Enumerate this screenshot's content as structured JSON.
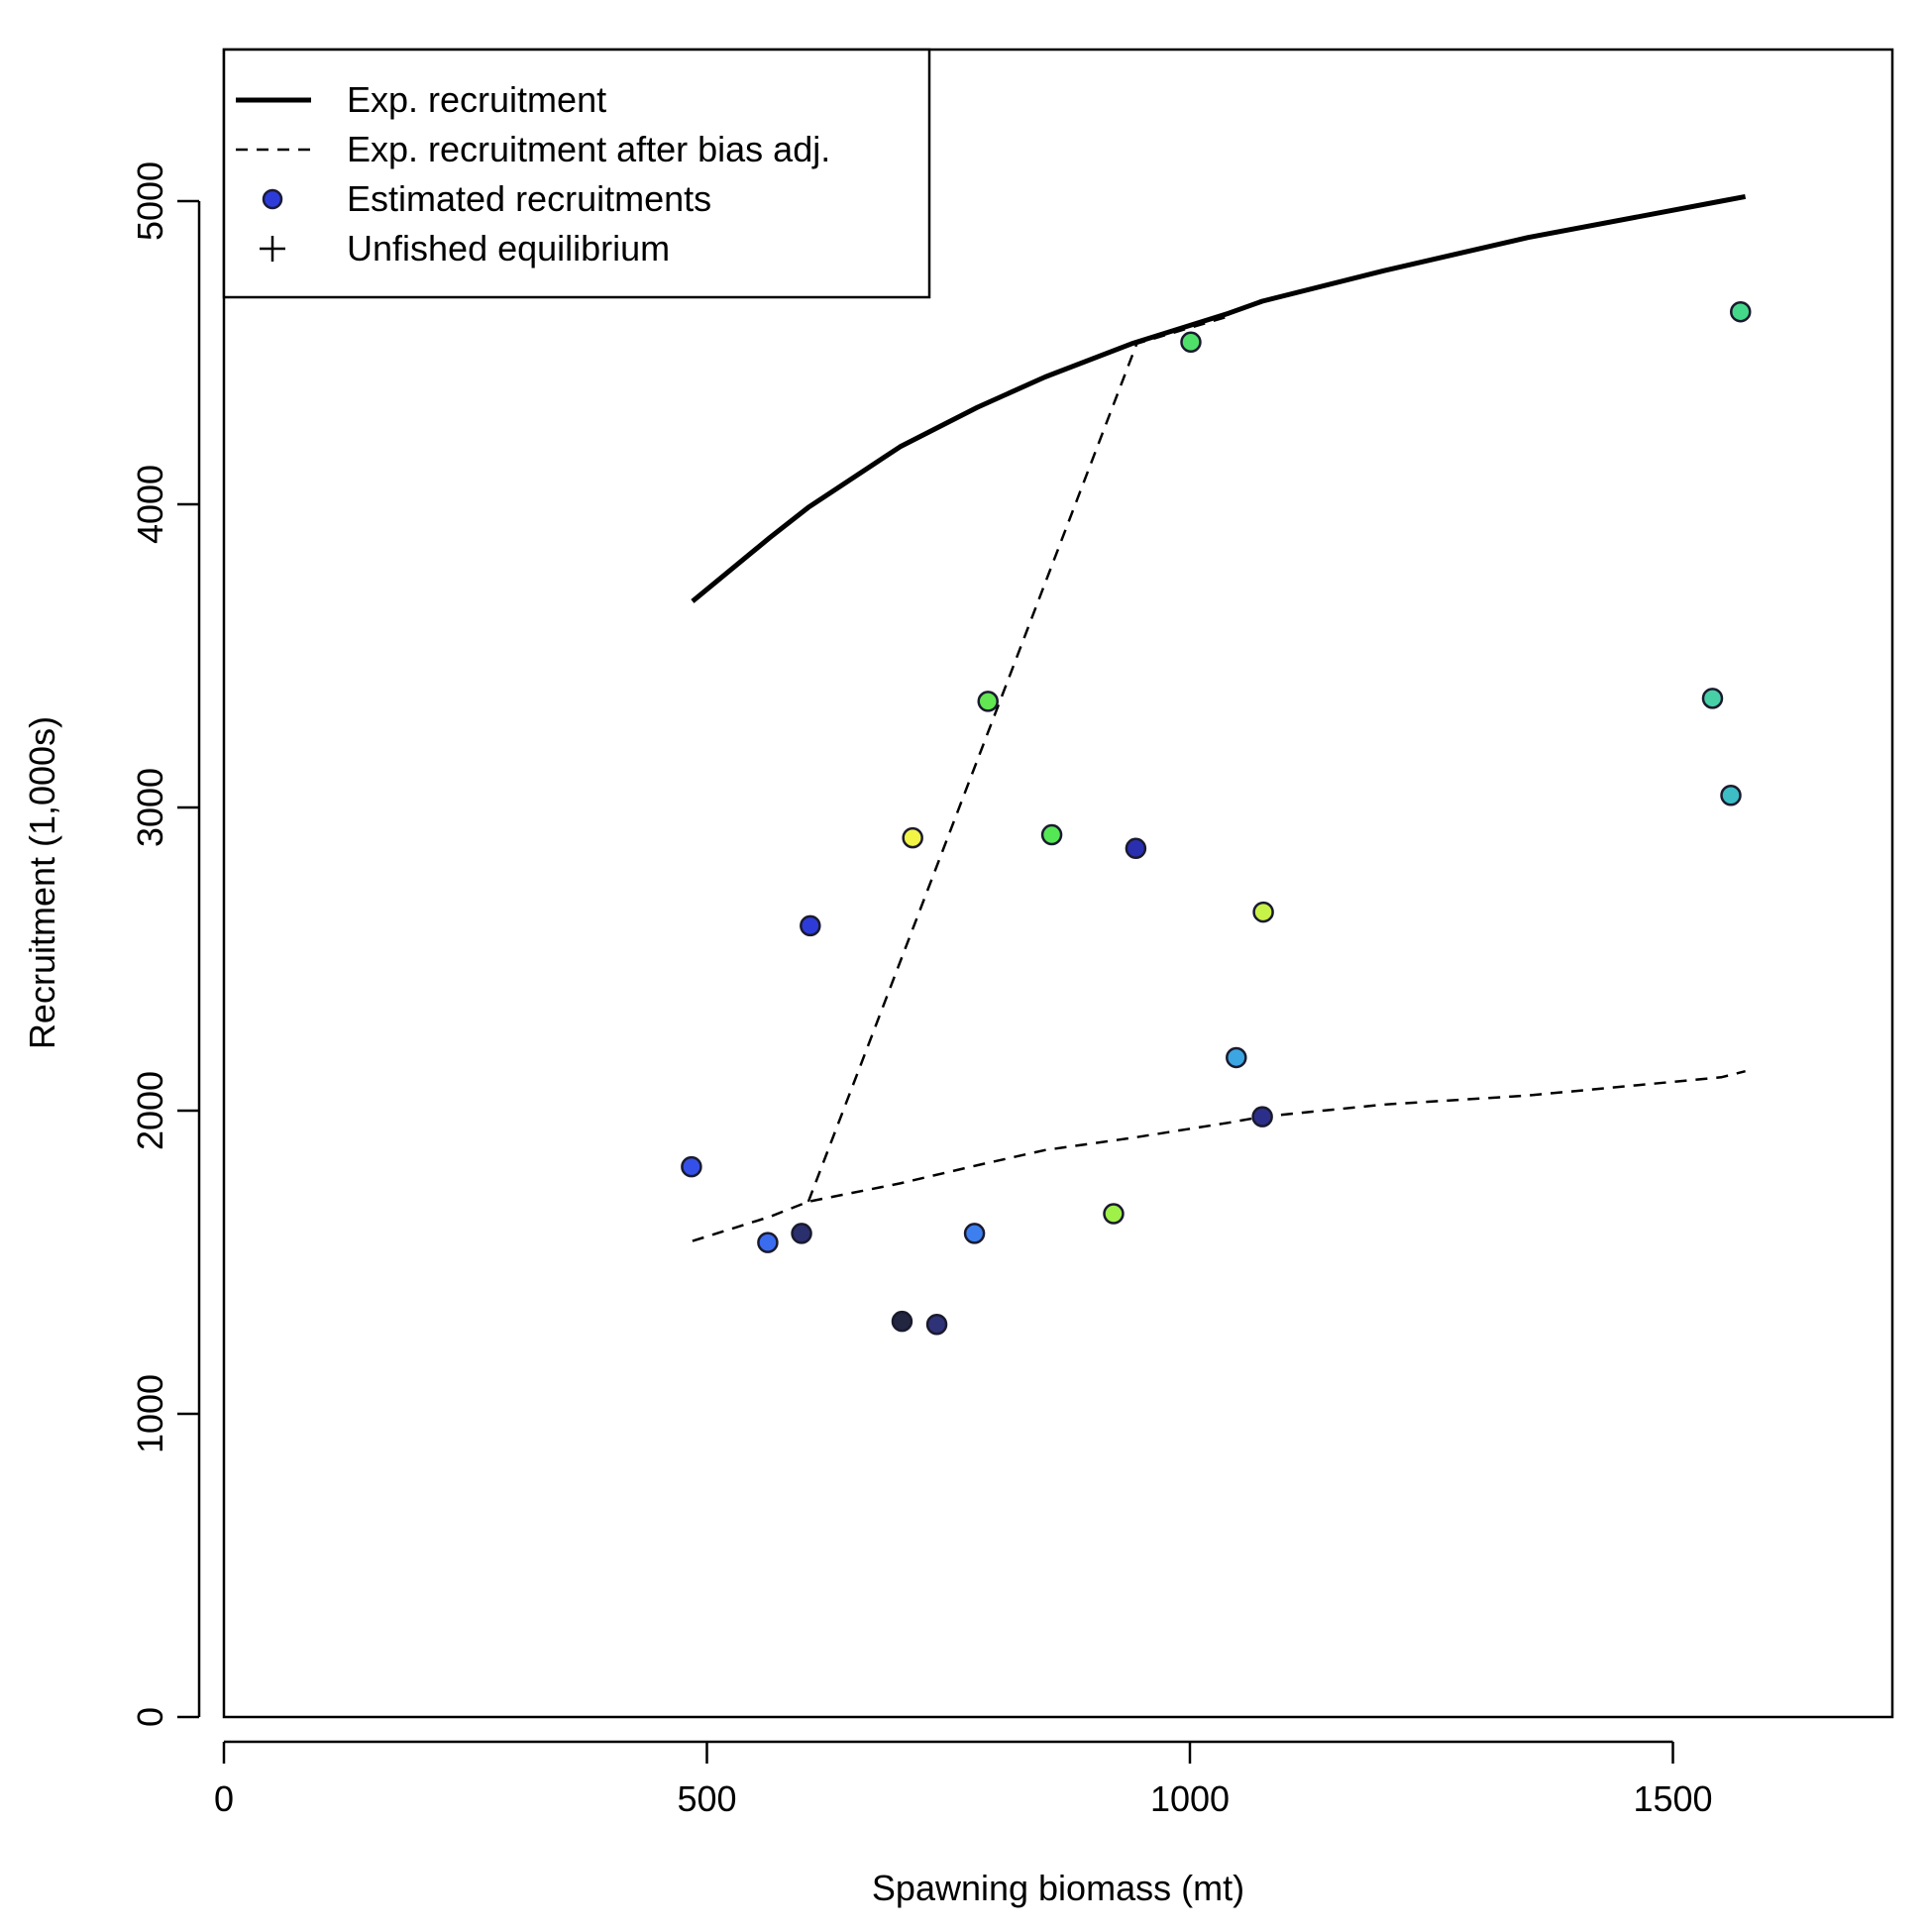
{
  "chart_data": {
    "type": "scatter",
    "xlabel": "Spawning biomass (mt)",
    "ylabel": "Recruitment (1,000s)",
    "xlim": [
      0,
      1727
    ],
    "ylim": [
      0,
      5513
    ],
    "xticks": [
      "0",
      "500",
      "1000",
      "1500"
    ],
    "yticks": [
      "0",
      "1000",
      "2000",
      "3000",
      "4000",
      "5000"
    ],
    "xtick_values": [
      0,
      500,
      1000,
      1500
    ],
    "ytick_values": [
      0,
      1000,
      2000,
      3000,
      4000,
      5000
    ],
    "legend_position": "top-left",
    "legend": [
      {
        "label": "Exp. recruitment",
        "style": "solid-line"
      },
      {
        "label": "Exp. recruitment after bias adj.",
        "style": "dashed-line"
      },
      {
        "label": "Estimated recruitments",
        "style": "point",
        "color": "#2d3cd9"
      },
      {
        "label": "Unfished equilibrium",
        "style": "plus"
      }
    ],
    "exp_recruitment": {
      "x": [
        485,
        565,
        605,
        700,
        780,
        850,
        940,
        1040,
        1075,
        1200,
        1350,
        1550,
        1575
      ],
      "y": [
        3680,
        3890,
        3990,
        4190,
        4320,
        4420,
        4530,
        4630,
        4670,
        4770,
        4880,
        5000,
        5015
      ]
    },
    "exp_recruitment_bias_adj": {
      "x": [
        485,
        565,
        605,
        700,
        780,
        850,
        940,
        1040,
        1075,
        1200,
        1350,
        1550,
        1575
      ],
      "y": [
        1570,
        1650,
        1700,
        1760,
        1820,
        1870,
        1910,
        1960,
        1980,
        2020,
        2050,
        2110,
        2130
      ]
    },
    "bias_adj_connector": {
      "x": [
        605,
        945,
        1040
      ],
      "y": [
        1700,
        4530,
        4620
      ]
    },
    "points": [
      {
        "x": 484,
        "y": 1815,
        "color": "#3550e8"
      },
      {
        "x": 563,
        "y": 1565,
        "color": "#3a6cf0"
      },
      {
        "x": 598,
        "y": 1595,
        "color": "#2a2f6e"
      },
      {
        "x": 607,
        "y": 2610,
        "color": "#2d3cd9"
      },
      {
        "x": 702,
        "y": 1305,
        "color": "#222640"
      },
      {
        "x": 713,
        "y": 2900,
        "color": "#f2f545"
      },
      {
        "x": 738,
        "y": 1295,
        "color": "#2e3277"
      },
      {
        "x": 777,
        "y": 1595,
        "color": "#3d7fee"
      },
      {
        "x": 791,
        "y": 3350,
        "color": "#62e651"
      },
      {
        "x": 857,
        "y": 2910,
        "color": "#55e855"
      },
      {
        "x": 921,
        "y": 1660,
        "color": "#9ff048"
      },
      {
        "x": 944,
        "y": 2865,
        "color": "#2a2fb0"
      },
      {
        "x": 1001,
        "y": 4535,
        "color": "#4fe06a"
      },
      {
        "x": 1048,
        "y": 2175,
        "color": "#3ca6e2"
      },
      {
        "x": 1075,
        "y": 1980,
        "color": "#2b2f8a"
      },
      {
        "x": 1076,
        "y": 2655,
        "color": "#c8f248"
      },
      {
        "x": 1541,
        "y": 3360,
        "color": "#47d0a6"
      },
      {
        "x": 1560,
        "y": 3040,
        "color": "#3dbdc4"
      },
      {
        "x": 1570,
        "y": 4635,
        "color": "#44d98a"
      }
    ]
  }
}
